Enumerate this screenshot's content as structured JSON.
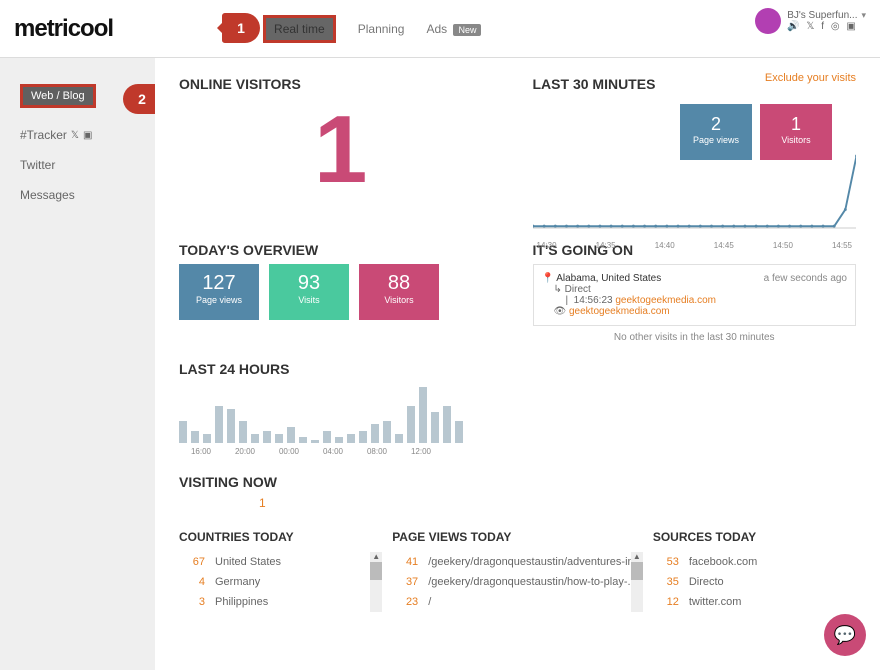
{
  "brand": "metricool",
  "nav": {
    "realtime": "Real time",
    "planning": "Planning",
    "ads": "Ads",
    "new": "New"
  },
  "user": {
    "name": "BJ's Superfun...",
    "icons": "☰ ✕ ƒ ⌖ ◎"
  },
  "sidebar": {
    "webblog": "Web / Blog",
    "tracker": "#Tracker",
    "twitter": "Twitter",
    "messages": "Messages"
  },
  "exclude": "Exclude your visits",
  "onlineVisitors": {
    "title": "ONLINE VISITORS",
    "value": "1"
  },
  "last30": {
    "title": "LAST 30 MINUTES",
    "tiles": [
      {
        "val": "2",
        "lbl": "Page views",
        "color": "bg-blue"
      },
      {
        "val": "1",
        "lbl": "Visitors",
        "color": "bg-pink"
      }
    ],
    "chart": {
      "points": [
        2,
        2,
        2,
        2,
        2,
        2,
        2,
        2,
        2,
        2,
        2,
        2,
        2,
        2,
        2,
        2,
        2,
        2,
        2,
        2,
        2,
        2,
        2,
        2,
        2,
        2,
        2,
        2,
        20,
        78
      ],
      "xlabels": [
        "14:30",
        "14:35",
        "14:40",
        "14:45",
        "14:50",
        "14:55"
      ],
      "stroke": "#5488a8",
      "width": 2
    }
  },
  "overview": {
    "title": "TODAY'S OVERVIEW",
    "tiles": [
      {
        "val": "127",
        "lbl": "Page views",
        "color": "bg-blue"
      },
      {
        "val": "93",
        "lbl": "Visits",
        "color": "bg-teal"
      },
      {
        "val": "88",
        "lbl": "Visitors",
        "color": "bg-pink"
      }
    ]
  },
  "goingOn": {
    "title": "IT'S GOING ON",
    "loc": "Alabama, United States",
    "ago": "a few seconds ago",
    "l1": "Direct",
    "l2time": "14:56:23",
    "l2link": "geektogeekmedia.com",
    "l3link": "geektogeekmedia.com",
    "noMore": "No other visits in the last 30 minutes"
  },
  "last24": {
    "title": "LAST 24 HOURS",
    "bars": [
      14,
      8,
      6,
      24,
      22,
      14,
      6,
      8,
      6,
      10,
      4,
      2,
      8,
      4,
      6,
      8,
      12,
      14,
      6,
      24,
      36,
      20,
      24,
      14
    ],
    "barColor": "#b8c7d0",
    "xlabels": [
      "16:00",
      "20:00",
      "00:00",
      "04:00",
      "08:00",
      "12:00"
    ]
  },
  "visiting": {
    "title": "VISITING NOW",
    "value": "1"
  },
  "countries": {
    "title": "COUNTRIES TODAY",
    "rows": [
      {
        "n": "67",
        "t": "United States"
      },
      {
        "n": "4",
        "t": "Germany"
      },
      {
        "n": "3",
        "t": "Philippines"
      }
    ]
  },
  "pageviews": {
    "title": "PAGE VIEWS TODAY",
    "rows": [
      {
        "n": "41",
        "t": "/geekery/dragonquestaustin/adventures-in..."
      },
      {
        "n": "37",
        "t": "/geekery/dragonquestaustin/how-to-play-..."
      },
      {
        "n": "23",
        "t": "/"
      }
    ]
  },
  "sources": {
    "title": "SOURCES TODAY",
    "rows": [
      {
        "n": "53",
        "t": "facebook.com"
      },
      {
        "n": "35",
        "t": "Directo"
      },
      {
        "n": "12",
        "t": "twitter.com"
      }
    ]
  },
  "annot1": "1",
  "annot2": "2"
}
